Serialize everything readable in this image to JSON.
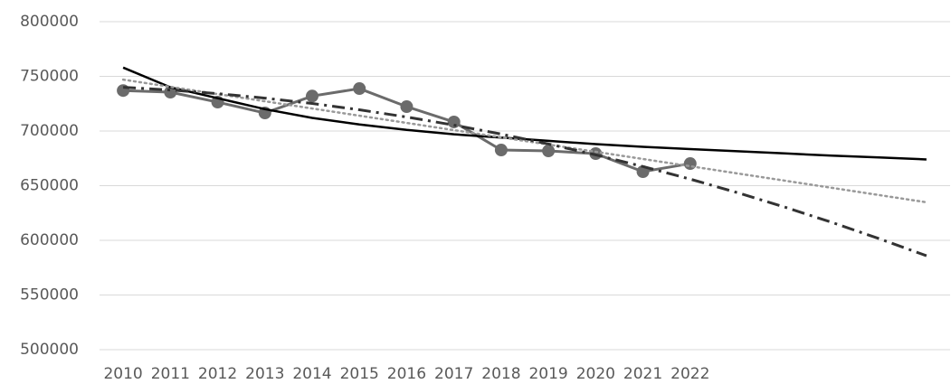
{
  "chart_data": {
    "type": "line",
    "categories": [
      "2010",
      "2011",
      "2012",
      "2013",
      "2014",
      "2015",
      "2016",
      "2017",
      "2018",
      "2019",
      "2020",
      "2021",
      "2022",
      null,
      null,
      null,
      null,
      null
    ],
    "series": [
      {
        "color": "#6b6b6b",
        "marker": "circle",
        "dash": "solid",
        "width": 3,
        "values": [
          737000,
          735500,
          726400,
          716500,
          732000,
          738800,
          722300,
          708300,
          682600,
          681800,
          679300,
          662800,
          670200,
          null,
          null,
          null,
          null,
          null
        ]
      },
      {
        "color": "#000000",
        "marker": "none",
        "dash": "solid",
        "width": 2.5,
        "values": [
          758000,
          740000,
          730000,
          720000,
          712000,
          706000,
          701000,
          697000,
          694000,
          691000,
          688000,
          685500,
          683500,
          681500,
          679500,
          677500,
          675800,
          674000
        ]
      },
      {
        "color": "#999999",
        "marker": "none",
        "dash": "dot",
        "width": 2.5,
        "values": [
          747000,
          740400,
          733800,
          727200,
          720600,
          714000,
          707400,
          700800,
          694200,
          687600,
          681000,
          674400,
          667800,
          661200,
          654600,
          648000,
          641400,
          634800
        ]
      },
      {
        "color": "#333333",
        "marker": "none",
        "dash": "dashdot",
        "width": 3,
        "values": [
          740000,
          737500,
          734200,
          730100,
          725200,
          719400,
          712800,
          705400,
          697200,
          688100,
          678200,
          667500,
          656000,
          643600,
          630400,
          616400,
          601500,
          585900
        ]
      }
    ],
    "ylim": [
      500000,
      800000
    ],
    "yticks": [
      500000,
      550000,
      600000,
      650000,
      700000,
      750000,
      800000
    ],
    "grid": true
  }
}
